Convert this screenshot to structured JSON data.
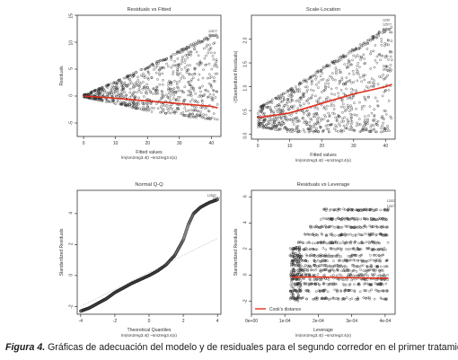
{
  "figure": {
    "caption_lead": "Figura 4.",
    "caption_text": " Gráficas de adecuación del modelo y de residuales para el segundo corredor en el primer tratamiento."
  },
  "chart_data": [
    {
      "id": "residuals-vs-fitted",
      "type": "scatter",
      "title": "Residuals vs Fitted",
      "xlabel": "Fitted values",
      "xlabel2": "lm(sm2reg3.4(t ~sm2reg3.4(x)",
      "ylabel": "Residuals",
      "xlim": [
        -2,
        43
      ],
      "ylim": [
        -7.5,
        15
      ],
      "xticks": [
        0,
        10,
        20,
        30,
        40
      ],
      "yticks": [
        -5,
        0,
        5,
        10,
        15
      ],
      "grid": false,
      "point_labels": [
        "12537",
        "12577"
      ],
      "series": [
        {
          "role": "upper-envelope",
          "x": [
            0,
            10,
            20,
            30,
            40
          ],
          "y": [
            0.2,
            2.7,
            5.5,
            8.5,
            11.5
          ]
        },
        {
          "role": "lower-envelope",
          "x": [
            0,
            10,
            20,
            30,
            40
          ],
          "y": [
            -0.2,
            -1.5,
            -2.8,
            -3.6,
            -4.4
          ]
        }
      ],
      "smooth_line": {
        "x": [
          0,
          10,
          20,
          30,
          40,
          42
        ],
        "y": [
          0,
          -0.4,
          -0.9,
          -1.4,
          -1.9,
          -2.2
        ]
      }
    },
    {
      "id": "scale-location",
      "type": "scatter",
      "title": "Scale-Location",
      "xlabel": "Fitted values",
      "xlabel2": "lm(sm2reg3.4(t ~sm2reg3.4(x)",
      "ylabel": "√|Standardized Residuals|",
      "xlim": [
        -2,
        43
      ],
      "ylim": [
        -0.1,
        2.5
      ],
      "xticks": [
        0,
        10,
        20,
        30,
        40
      ],
      "yticks": [
        0.0,
        0.5,
        1.0,
        1.5,
        2.0
      ],
      "grid": false,
      "point_labels": [
        "12537",
        "12577",
        "1230"
      ],
      "series": [
        {
          "role": "upper-envelope",
          "x": [
            0,
            10,
            20,
            30,
            40
          ],
          "y": [
            0.55,
            0.95,
            1.4,
            1.8,
            2.25
          ]
        },
        {
          "role": "lower-envelope",
          "x": [
            0,
            10,
            20,
            30,
            40
          ],
          "y": [
            0.15,
            0.05,
            0.05,
            0.05,
            0.05
          ]
        }
      ],
      "smooth_line": {
        "x": [
          0,
          10,
          20,
          30,
          40,
          42
        ],
        "y": [
          0.35,
          0.45,
          0.65,
          0.85,
          1.0,
          1.05
        ]
      }
    },
    {
      "id": "normal-qq",
      "type": "line",
      "title": "Normal Q-Q",
      "xlabel": "Theoretical Quantiles",
      "xlabel2": "lm(sm2reg3.4(t ~sm2reg3.4(x)",
      "ylabel": "Standardized Residuals",
      "xlim": [
        -4.2,
        4.2
      ],
      "ylim": [
        -2.5,
        5.5
      ],
      "xticks": [
        -4,
        -2,
        0,
        2,
        4
      ],
      "yticks": [
        -2,
        0,
        2,
        4
      ],
      "grid": false,
      "point_labels": [
        "12537",
        "1230"
      ],
      "series": [
        {
          "role": "sample-quantiles",
          "x": [
            -4.0,
            -3.5,
            -3.0,
            -2.5,
            -2.0,
            -1.5,
            -1.0,
            -0.5,
            0.0,
            0.5,
            1.0,
            1.5,
            2.0,
            2.3,
            2.6,
            3.0,
            3.5,
            4.0
          ],
          "y": [
            -2.3,
            -2.1,
            -1.8,
            -1.5,
            -1.1,
            -0.8,
            -0.5,
            -0.25,
            0.0,
            0.3,
            0.7,
            1.3,
            2.3,
            3.3,
            4.0,
            4.4,
            4.7,
            4.9
          ]
        },
        {
          "role": "reference-line",
          "x": [
            -4.0,
            4.0
          ],
          "y": [
            -2.0,
            2.4
          ]
        }
      ]
    },
    {
      "id": "residuals-vs-leverage",
      "type": "scatter",
      "title": "Residuals vs Leverage",
      "xlabel": "Leverage",
      "xlabel2": "lm(sm2reg3.4(t ~sm2reg3.4(x)",
      "ylabel": "Standardized Residuals",
      "xlim": [
        0,
        0.00043
      ],
      "ylim": [
        -3,
        6.5
      ],
      "xtick_values": [
        0,
        0.0001,
        0.0002,
        0.0003,
        0.0004
      ],
      "xticks": [
        "0e+00",
        "1e-04",
        "2e-04",
        "3e-04",
        "4e-04"
      ],
      "yticks": [
        -2,
        0,
        2,
        4,
        6
      ],
      "grid": false,
      "legend": {
        "entries": [
          "Cook's distance"
        ],
        "position": "bottom-left"
      },
      "point_labels": [
        "12537",
        "12577"
      ],
      "bands": [
        -1.8,
        -1.2,
        -0.7,
        -0.3,
        0.0,
        0.35,
        0.7,
        1.1,
        1.5,
        2.0,
        2.5,
        3.1,
        3.7,
        4.3,
        5.0
      ],
      "smooth_line": {
        "x": [
          0.00012,
          0.0002,
          0.0003,
          0.00041
        ],
        "y": [
          -0.15,
          -0.15,
          -0.2,
          -0.25
        ]
      }
    }
  ]
}
